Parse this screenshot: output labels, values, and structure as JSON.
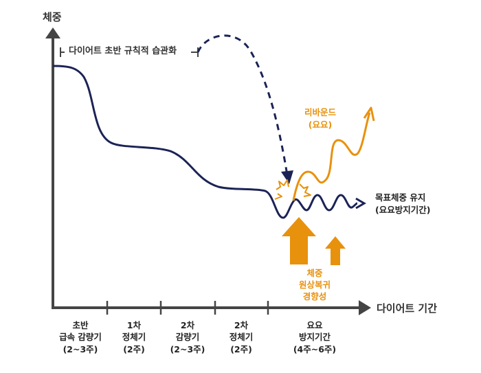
{
  "axes": {
    "y_label": "체중",
    "x_label": "다이어트 기간"
  },
  "habit_label": "다이어트 초반 규칙적 습관화",
  "rebound": {
    "line1": "리바운드",
    "line2": "(요요)"
  },
  "maintain": {
    "line1": "목표체중 유지",
    "line2": "(요요방지기간)"
  },
  "recovery": {
    "line1": "체중",
    "line2": "원상복귀",
    "line3": "경향성"
  },
  "phases": [
    {
      "line1": "초반",
      "line2": "급속 감량기",
      "line3": "(2~3주)"
    },
    {
      "line1": "1차",
      "line2": "정체기",
      "line3": "(2주)"
    },
    {
      "line1": "2차",
      "line2": "감량기",
      "line3": "(2~3주)"
    },
    {
      "line1": "2차",
      "line2": "정체기",
      "line3": "(2주)"
    },
    {
      "line1": "요요",
      "line2": "방지기간",
      "line3": "(4주~6주)"
    }
  ],
  "colors": {
    "curve": "#1b2356",
    "axis": "#444444",
    "rebound": "#e8910c"
  },
  "icons": [
    "arrow-up-icon",
    "burst-icon",
    "arrowhead-icon"
  ]
}
